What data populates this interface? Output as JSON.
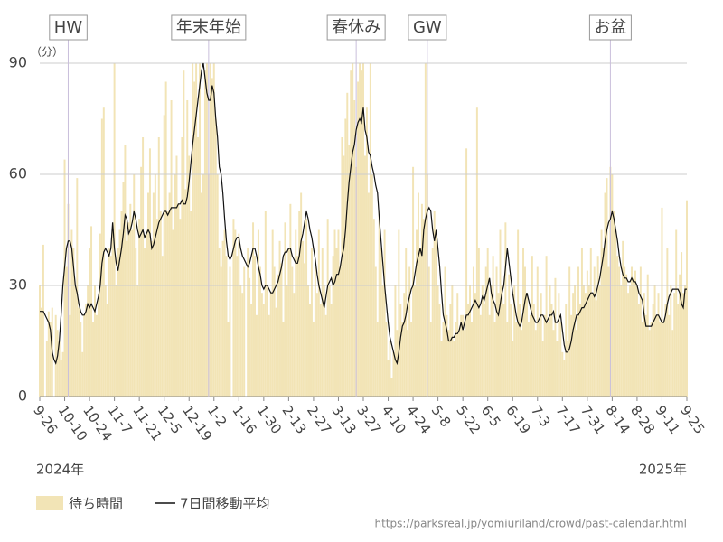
{
  "chart_data": {
    "type": "bar-line",
    "y_unit": "（分）",
    "year_labels": [
      "2024年",
      "2025年"
    ],
    "source": "https://parksreal.jp/yomiuriland/crowd/past-calendar.html",
    "ylim": [
      0,
      90
    ],
    "yticks": [
      0,
      30,
      60,
      90
    ],
    "grid": true,
    "annotations": [
      {
        "label": "HW",
        "index": 16
      },
      {
        "label": "年末年始",
        "index": 95
      },
      {
        "label": "春休み",
        "index": 178
      },
      {
        "label": "GW",
        "index": 218
      },
      {
        "label": "お盆",
        "index": 321
      }
    ],
    "categories": [
      "9-26",
      null,
      null,
      null,
      null,
      null,
      null,
      null,
      null,
      null,
      null,
      null,
      null,
      null,
      "10-10",
      null,
      null,
      null,
      null,
      null,
      null,
      null,
      null,
      null,
      null,
      null,
      null,
      null,
      "10-24",
      null,
      null,
      null,
      null,
      null,
      null,
      null,
      null,
      null,
      null,
      null,
      null,
      null,
      "11-7",
      null,
      null,
      null,
      null,
      null,
      null,
      null,
      null,
      null,
      null,
      null,
      null,
      null,
      "11-21",
      null,
      null,
      null,
      null,
      null,
      null,
      null,
      null,
      null,
      null,
      null,
      null,
      null,
      "12-5",
      null,
      null,
      null,
      null,
      null,
      null,
      null,
      null,
      null,
      null,
      null,
      null,
      null,
      "12-19",
      null,
      null,
      null,
      null,
      null,
      null,
      null,
      null,
      null,
      null,
      null,
      null,
      null,
      "1-2",
      null,
      null,
      null,
      null,
      null,
      null,
      null,
      null,
      null,
      null,
      null,
      null,
      null,
      "1-16",
      null,
      null,
      null,
      null,
      null,
      null,
      null,
      null,
      null,
      null,
      null,
      null,
      null,
      "1-30",
      null,
      null,
      null,
      null,
      null,
      null,
      null,
      null,
      null,
      null,
      null,
      null,
      null,
      "2-13",
      null,
      null,
      null,
      null,
      null,
      null,
      null,
      null,
      null,
      null,
      null,
      null,
      null,
      "2-27",
      null,
      null,
      null,
      null,
      null,
      null,
      null,
      null,
      null,
      null,
      null,
      null,
      null,
      "3-13",
      null,
      null,
      null,
      null,
      null,
      null,
      null,
      null,
      null,
      null,
      null,
      null,
      null,
      "3-27",
      null,
      null,
      null,
      null,
      null,
      null,
      null,
      null,
      null,
      null,
      null,
      null,
      null,
      "4-10",
      null,
      null,
      null,
      null,
      null,
      null,
      null,
      null,
      null,
      null,
      null,
      null,
      null,
      "4-24",
      null,
      null,
      null,
      null,
      null,
      null,
      null,
      null,
      null,
      null,
      null,
      null,
      null,
      "5-8",
      null,
      null,
      null,
      null,
      null,
      null,
      null,
      null,
      null,
      null,
      null,
      null,
      null,
      "5-22",
      null,
      null,
      null,
      null,
      null,
      null,
      null,
      null,
      null,
      null,
      null,
      null,
      null,
      "6-5",
      null,
      null,
      null,
      null,
      null,
      null,
      null,
      null,
      null,
      null,
      null,
      null,
      null,
      "6-19",
      null,
      null,
      null,
      null,
      null,
      null,
      null,
      null,
      null,
      null,
      null,
      null,
      null,
      "7-3",
      null,
      null,
      null,
      null,
      null,
      null,
      null,
      null,
      null,
      null,
      null,
      null,
      null,
      "7-17",
      null,
      null,
      null,
      null,
      null,
      null,
      null,
      null,
      null,
      null,
      null,
      null,
      null,
      "7-31",
      null,
      null,
      null,
      null,
      null,
      null,
      null,
      null,
      null,
      null,
      null,
      null,
      null,
      "8-14",
      null,
      null,
      null,
      null,
      null,
      null,
      null,
      null,
      null,
      null,
      null,
      null,
      null,
      "8-28",
      null,
      null,
      null,
      null,
      null,
      null,
      null,
      null,
      null,
      null,
      null,
      null,
      null,
      "9-11",
      null,
      null,
      null,
      null,
      null,
      null,
      null,
      null,
      null,
      null,
      null,
      null,
      null,
      "9-25"
    ],
    "series": [
      {
        "name": "待ち時間",
        "color": "#f2e4b6",
        "values": [
          30,
          24,
          41,
          0,
          15,
          23,
          20,
          24,
          0,
          22,
          18,
          15,
          10,
          12,
          64,
          35,
          52,
          22,
          45,
          40,
          30,
          59,
          24,
          20,
          12,
          22,
          25,
          30,
          40,
          46,
          20,
          30,
          22,
          26,
          44,
          75,
          78,
          30,
          25,
          40,
          38,
          45,
          90,
          30,
          40,
          45,
          50,
          58,
          68,
          42,
          47,
          52,
          45,
          60,
          40,
          30,
          48,
          62,
          70,
          40,
          45,
          55,
          67,
          42,
          55,
          60,
          48,
          70,
          50,
          38,
          76,
          85,
          50,
          55,
          80,
          45,
          60,
          65,
          52,
          48,
          70,
          88,
          56,
          80,
          65,
          50,
          90,
          85,
          90,
          70,
          90,
          55,
          60,
          88,
          90,
          60,
          90,
          86,
          90,
          75,
          60,
          40,
          35,
          42,
          45,
          38,
          20,
          35,
          0,
          48,
          45,
          38,
          44,
          30,
          28,
          35,
          0,
          40,
          32,
          25,
          47,
          38,
          22,
          45,
          35,
          28,
          25,
          50,
          30,
          22,
          28,
          45,
          35,
          24,
          33,
          42,
          36,
          20,
          47,
          30,
          40,
          52,
          35,
          28,
          45,
          38,
          50,
          55,
          42,
          36,
          48,
          30,
          25,
          40,
          20,
          35,
          28,
          45,
          25,
          40,
          30,
          22,
          48,
          30,
          25,
          38,
          45,
          40,
          45,
          35,
          70,
          65,
          75,
          82,
          68,
          88,
          90,
          80,
          62,
          85,
          90,
          88,
          90,
          65,
          78,
          55,
          90,
          60,
          48,
          35,
          20,
          50,
          40,
          30,
          45,
          20,
          10,
          15,
          5,
          12,
          30,
          18,
          45,
          25,
          20,
          28,
          40,
          18,
          35,
          20,
          62,
          30,
          45,
          55,
          40,
          52,
          48,
          90,
          60,
          35,
          20,
          40,
          50,
          45,
          30,
          25,
          15,
          20,
          35,
          22,
          18,
          25,
          30,
          15,
          20,
          28,
          18,
          22,
          22,
          18,
          67,
          25,
          30,
          20,
          35,
          28,
          78,
          40,
          22,
          30,
          25,
          35,
          40,
          22,
          30,
          38,
          20,
          35,
          28,
          45,
          30,
          25,
          47,
          20,
          33,
          25,
          15,
          30,
          20,
          45,
          25,
          18,
          40,
          35,
          28,
          20,
          22,
          38,
          25,
          18,
          35,
          20,
          28,
          15,
          22,
          38,
          20,
          30,
          25,
          18,
          32,
          15,
          28,
          20,
          12,
          10,
          25,
          15,
          35,
          22,
          28,
          30,
          18,
          35,
          25,
          40,
          30,
          28,
          34,
          30,
          40,
          28,
          35,
          26,
          38,
          30,
          45,
          40,
          55,
          59,
          35,
          62,
          60,
          50,
          45,
          38,
          35,
          30,
          42,
          35,
          33,
          28,
          30,
          35,
          32,
          34,
          30,
          25,
          35,
          20,
          28,
          22,
          33,
          18,
          20,
          25,
          30,
          22,
          28,
          20,
          51,
          20,
          25,
          40,
          22,
          30,
          18,
          28,
          45,
          25,
          33,
          39,
          28,
          30,
          53
        ]
      },
      {
        "name": "7日間移動平均",
        "color": "#111111",
        "values": [
          23,
          23,
          23,
          22,
          21,
          20,
          18,
          12,
          10,
          9,
          11,
          15,
          22,
          30,
          35,
          40,
          42,
          42,
          40,
          35,
          30,
          28,
          25,
          23,
          22,
          22,
          23,
          25,
          24,
          25,
          24,
          23,
          25,
          27,
          30,
          36,
          39,
          40,
          39,
          38,
          40,
          47,
          40,
          36,
          34,
          37,
          40,
          44,
          49,
          48,
          44,
          45,
          47,
          50,
          48,
          45,
          43,
          44,
          45,
          43,
          44,
          45,
          44,
          40,
          41,
          43,
          45,
          47,
          48,
          49,
          50,
          50,
          49,
          50,
          51,
          51,
          51,
          51,
          52,
          52,
          53,
          52,
          52,
          54,
          58,
          63,
          68,
          72,
          76,
          80,
          84,
          88,
          90,
          86,
          82,
          80,
          80,
          84,
          82,
          75,
          70,
          62,
          60,
          55,
          48,
          42,
          38,
          37,
          38,
          40,
          42,
          43,
          43,
          40,
          38,
          37,
          36,
          35,
          36,
          38,
          40,
          40,
          38,
          35,
          33,
          30,
          29,
          30,
          30,
          29,
          28,
          28,
          29,
          30,
          31,
          33,
          35,
          38,
          39,
          39,
          40,
          40,
          38,
          37,
          36,
          36,
          38,
          42,
          44,
          47,
          50,
          48,
          45,
          43,
          40,
          37,
          33,
          30,
          28,
          26,
          24,
          27,
          30,
          31,
          32,
          30,
          31,
          33,
          33,
          35,
          38,
          40,
          45,
          52,
          58,
          62,
          66,
          68,
          72,
          74,
          75,
          74,
          78,
          72,
          70,
          66,
          65,
          62,
          60,
          57,
          55,
          48,
          42,
          36,
          30,
          25,
          20,
          16,
          14,
          12,
          10,
          9,
          12,
          16,
          19,
          20,
          22,
          25,
          27,
          29,
          30,
          33,
          36,
          38,
          40,
          38,
          45,
          48,
          50,
          51,
          50,
          45,
          42,
          45,
          40,
          35,
          28,
          22,
          20,
          18,
          15,
          15,
          16,
          16,
          17,
          17,
          18,
          20,
          18,
          20,
          22,
          22,
          23,
          24,
          25,
          26,
          25,
          24,
          25,
          27,
          26,
          28,
          30,
          32,
          28,
          26,
          25,
          23,
          22,
          25,
          28,
          30,
          35,
          40,
          36,
          32,
          28,
          25,
          22,
          20,
          19,
          20,
          23,
          26,
          28,
          26,
          24,
          22,
          21,
          20,
          20,
          21,
          22,
          22,
          21,
          20,
          21,
          22,
          22,
          23,
          20,
          20,
          21,
          22,
          18,
          14,
          12,
          12,
          13,
          15,
          18,
          20,
          22,
          22,
          23,
          24,
          24,
          25,
          26,
          27,
          28,
          28,
          27,
          28,
          30,
          32,
          35,
          38,
          42,
          45,
          47,
          48,
          50,
          48,
          45,
          42,
          38,
          35,
          33,
          32,
          32,
          31,
          31,
          32,
          31,
          31,
          30,
          28,
          27,
          26,
          22,
          19,
          19,
          19,
          19,
          20,
          21,
          22,
          22,
          21,
          20,
          20,
          22,
          25,
          27,
          28,
          29,
          29,
          29,
          29,
          28,
          25,
          24,
          29,
          29
        ]
      }
    ]
  }
}
